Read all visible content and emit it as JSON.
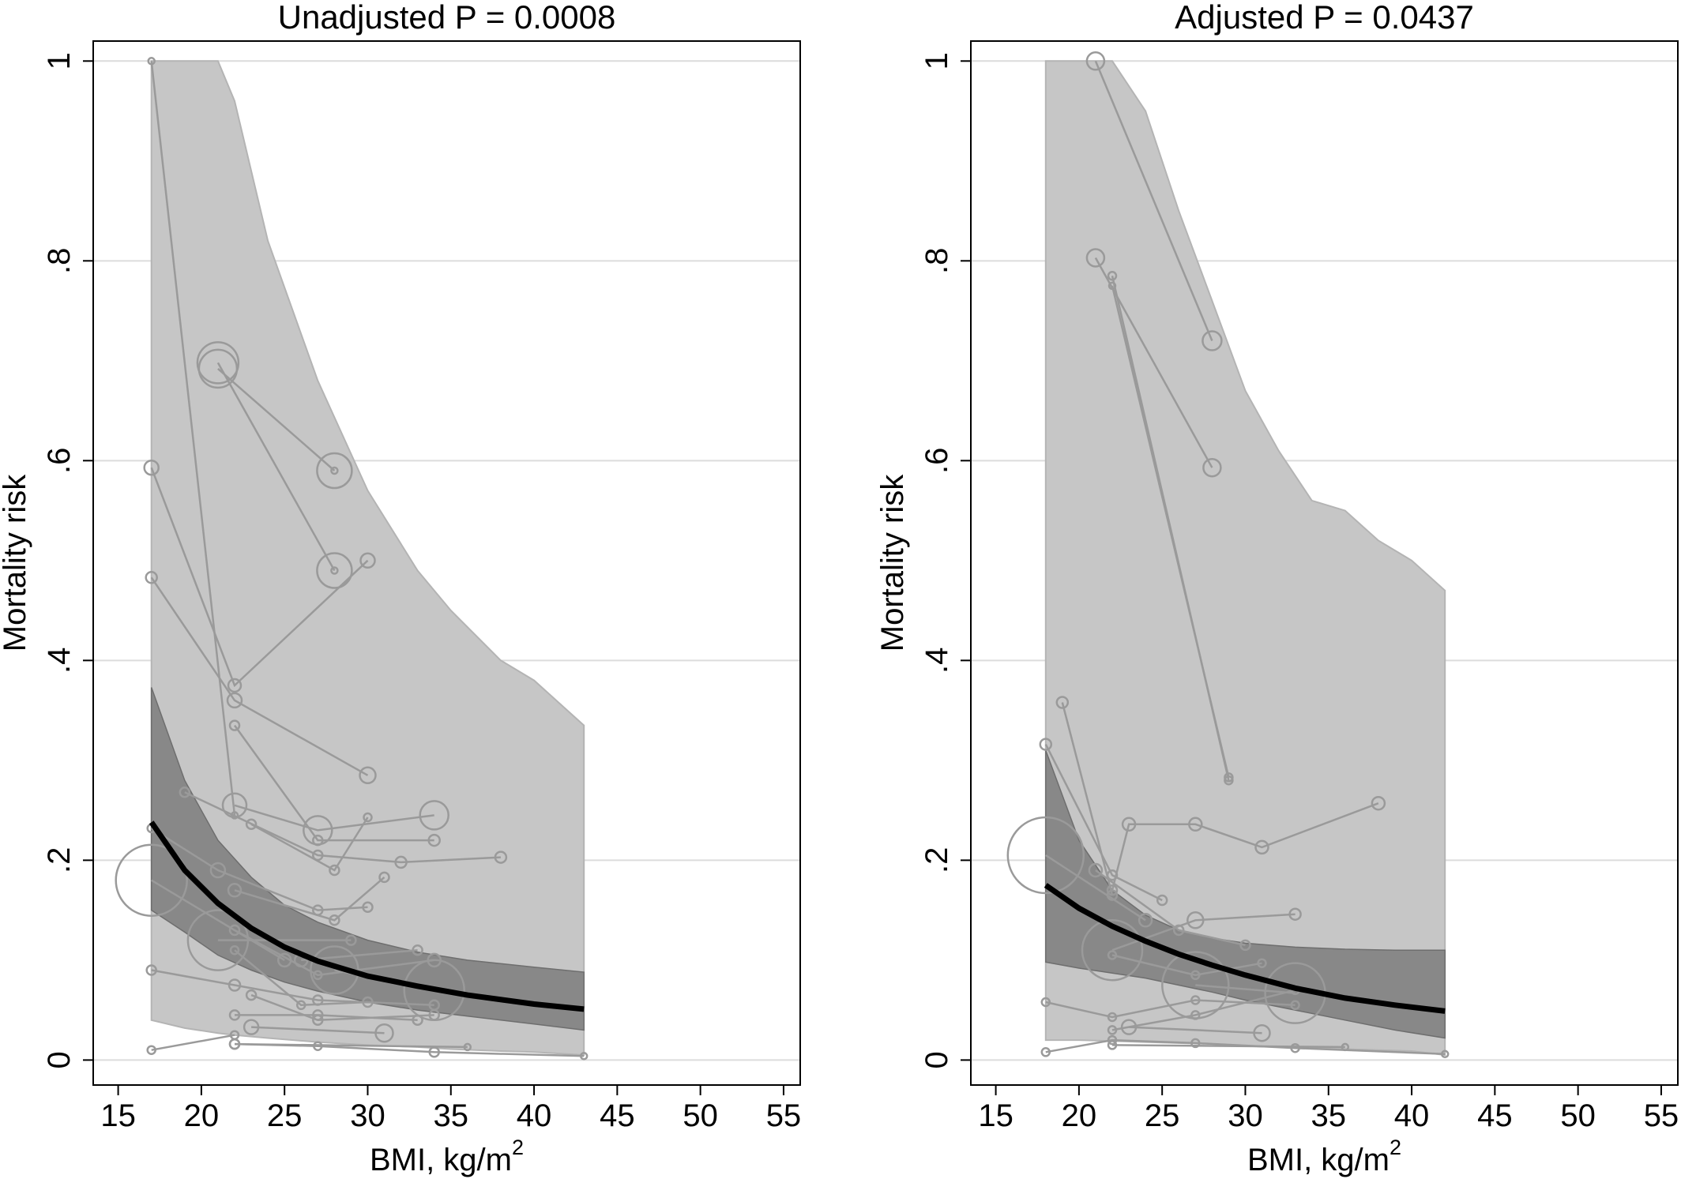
{
  "chart_data": [
    {
      "type": "line",
      "title": "Unadjusted P = 0.0008",
      "xlabel": "BMI, kg/m",
      "xlabel_superscript": "2",
      "ylabel": "Mortality risk",
      "xlim": [
        13.5,
        56
      ],
      "ylim": [
        -0.025,
        1.02
      ],
      "x_ticks": [
        15,
        20,
        25,
        30,
        35,
        40,
        45,
        50,
        55
      ],
      "x_tick_labels": [
        "15",
        "20",
        "25",
        "30",
        "35",
        "40",
        "45",
        "50",
        "55"
      ],
      "y_ticks": [
        0,
        0.2,
        0.4,
        0.6,
        0.8,
        1
      ],
      "y_tick_labels": [
        "0",
        ".2",
        ".4",
        ".6",
        ".8",
        "1"
      ],
      "grid": "horizontal",
      "colors": {
        "prediction_band": "#c6c6c6",
        "confidence_band": "#888888",
        "fit": "#000000",
        "study_points": "#9a9a9a"
      },
      "prediction_band": {
        "x": [
          17,
          19,
          21,
          22,
          24,
          27,
          30,
          33,
          35,
          38,
          40,
          43
        ],
        "upper": [
          1,
          1,
          1,
          0.96,
          0.82,
          0.68,
          0.57,
          0.49,
          0.45,
          0.4,
          0.38,
          0.335
        ],
        "lower": [
          0.04,
          0.032,
          0.027,
          0.025,
          0.022,
          0.018,
          0.015,
          0.013,
          0.011,
          0.009,
          0.008,
          0.005
        ]
      },
      "confidence_band": {
        "x": [
          17,
          19,
          21,
          23,
          25,
          27,
          30,
          33,
          36,
          40,
          43
        ],
        "upper": [
          0.373,
          0.28,
          0.22,
          0.183,
          0.155,
          0.138,
          0.12,
          0.108,
          0.1,
          0.093,
          0.088
        ],
        "lower": [
          0.15,
          0.128,
          0.105,
          0.09,
          0.078,
          0.069,
          0.058,
          0.05,
          0.044,
          0.036,
          0.03
        ]
      },
      "fit": {
        "x": [
          17,
          19,
          21,
          23,
          25,
          27,
          30,
          33,
          36,
          40,
          43
        ],
        "y": [
          0.238,
          0.19,
          0.157,
          0.132,
          0.113,
          0.099,
          0.084,
          0.074,
          0.065,
          0.056,
          0.051
        ]
      },
      "studies": [
        {
          "points": [
            [
              17,
              1.0,
              4
            ],
            [
              22,
              0.245,
              4
            ]
          ]
        },
        {
          "points": [
            [
              21,
              0.698,
              26
            ],
            [
              28,
              0.49,
              4
            ]
          ]
        },
        {
          "points": [
            [
              21,
              0.692,
              24
            ],
            [
              28,
              0.59,
              4
            ]
          ]
        },
        {
          "points": [
            [
              28,
              0.59,
              22
            ]
          ]
        },
        {
          "points": [
            [
              17,
              0.593,
              9
            ],
            [
              22,
              0.375,
              8
            ],
            [
              30,
              0.5,
              9
            ]
          ]
        },
        {
          "points": [
            [
              17,
              0.483,
              7
            ],
            [
              22,
              0.36,
              9
            ],
            [
              30,
              0.285,
              10
            ]
          ]
        },
        {
          "points": [
            [
              28,
              0.49,
              22
            ]
          ]
        },
        {
          "points": [
            [
              22,
              0.335,
              6
            ],
            [
              27,
              0.22,
              6
            ],
            [
              34,
              0.22,
              7
            ]
          ]
        },
        {
          "points": [
            [
              22,
              0.255,
              15
            ],
            [
              27,
              0.23,
              18
            ],
            [
              34,
              0.245,
              18
            ]
          ]
        },
        {
          "points": [
            [
              19,
              0.268,
              6
            ],
            [
              27,
              0.205,
              6
            ],
            [
              32,
              0.198,
              7
            ],
            [
              38,
              0.203,
              7
            ]
          ]
        },
        {
          "points": [
            [
              23,
              0.236,
              6
            ],
            [
              28,
              0.19,
              6
            ],
            [
              30,
              0.243,
              5
            ]
          ]
        },
        {
          "points": [
            [
              17,
              0.232,
              5
            ],
            [
              21,
              0.19,
              9
            ],
            [
              27,
              0.15,
              6
            ],
            [
              30,
              0.153,
              6
            ]
          ]
        },
        {
          "points": [
            [
              17,
              0.18,
              45
            ],
            [
              25,
              0.1,
              8
            ]
          ]
        },
        {
          "points": [
            [
              21,
              0.12,
              38
            ],
            [
              29,
              0.12,
              6
            ]
          ]
        },
        {
          "points": [
            [
              22,
              0.17,
              8
            ],
            [
              28,
              0.14,
              6
            ],
            [
              31,
              0.183,
              6
            ]
          ]
        },
        {
          "points": [
            [
              26,
              0.1,
              8
            ],
            [
              33,
              0.11,
              6
            ]
          ]
        },
        {
          "points": [
            [
              22,
              0.13,
              6
            ],
            [
              27,
              0.085,
              5
            ],
            [
              34,
              0.1,
              8
            ]
          ]
        },
        {
          "points": [
            [
              28,
              0.09,
              30
            ],
            [
              34,
              0.07,
              38
            ]
          ]
        },
        {
          "points": [
            [
              17,
              0.09,
              6
            ],
            [
              22,
              0.075,
              7
            ],
            [
              27,
              0.06,
              6
            ],
            [
              34,
              0.055,
              6
            ]
          ]
        },
        {
          "points": [
            [
              22,
              0.11,
              5
            ],
            [
              26,
              0.055,
              5
            ],
            [
              30,
              0.058,
              6
            ]
          ]
        },
        {
          "points": [
            [
              23,
              0.065,
              6
            ],
            [
              27,
              0.04,
              6
            ],
            [
              34,
              0.045,
              6
            ]
          ]
        },
        {
          "points": [
            [
              22,
              0.045,
              6
            ],
            [
              27,
              0.045,
              6
            ],
            [
              33,
              0.04,
              6
            ]
          ]
        },
        {
          "points": [
            [
              23,
              0.033,
              9
            ],
            [
              31,
              0.027,
              11
            ]
          ]
        },
        {
          "points": [
            [
              17,
              0.01,
              5
            ],
            [
              22,
              0.025,
              5
            ]
          ]
        },
        {
          "points": [
            [
              22,
              0.016,
              6
            ],
            [
              27,
              0.014,
              5
            ],
            [
              34,
              0.008,
              6
            ],
            [
              43,
              0.004,
              4
            ]
          ]
        },
        {
          "points": [
            [
              22,
              0.016,
              6
            ],
            [
              36,
              0.013,
              4
            ]
          ]
        }
      ]
    },
    {
      "type": "line",
      "title": "Adjusted P = 0.0437",
      "xlabel": "BMI, kg/m",
      "xlabel_superscript": "2",
      "ylabel": "Mortality risk",
      "xlim": [
        13.5,
        56
      ],
      "ylim": [
        -0.025,
        1.02
      ],
      "x_ticks": [
        15,
        20,
        25,
        30,
        35,
        40,
        45,
        50,
        55
      ],
      "x_tick_labels": [
        "15",
        "20",
        "25",
        "30",
        "35",
        "40",
        "45",
        "50",
        "55"
      ],
      "y_ticks": [
        0,
        0.2,
        0.4,
        0.6,
        0.8,
        1
      ],
      "y_tick_labels": [
        "0",
        ".2",
        ".4",
        ".6",
        ".8",
        "1"
      ],
      "grid": "horizontal",
      "colors": {
        "prediction_band": "#c6c6c6",
        "confidence_band": "#888888",
        "fit": "#000000",
        "study_points": "#9a9a9a"
      },
      "prediction_band": {
        "x": [
          18,
          20,
          22,
          24,
          26,
          28,
          30,
          32,
          34,
          36,
          38,
          40,
          42
        ],
        "upper": [
          1,
          1,
          1,
          0.95,
          0.85,
          0.76,
          0.67,
          0.61,
          0.56,
          0.55,
          0.52,
          0.5,
          0.47
        ],
        "lower": [
          0.02,
          0.02,
          0.019,
          0.018,
          0.017,
          0.016,
          0.014,
          0.013,
          0.012,
          0.011,
          0.01,
          0.009,
          0.005
        ]
      },
      "confidence_band": {
        "x": [
          18,
          20,
          22,
          24,
          26,
          28,
          30,
          33,
          36,
          39,
          42
        ],
        "upper": [
          0.31,
          0.22,
          0.17,
          0.145,
          0.13,
          0.122,
          0.117,
          0.113,
          0.111,
          0.11,
          0.11
        ],
        "lower": [
          0.098,
          0.092,
          0.087,
          0.082,
          0.075,
          0.068,
          0.06,
          0.05,
          0.04,
          0.03,
          0.022
        ]
      },
      "fit": {
        "x": [
          18,
          20,
          22,
          24,
          26,
          28,
          30,
          33,
          36,
          39,
          42
        ],
        "y": [
          0.175,
          0.152,
          0.134,
          0.119,
          0.106,
          0.095,
          0.085,
          0.072,
          0.062,
          0.055,
          0.049
        ]
      },
      "studies": [
        {
          "points": [
            [
              21,
              1.0,
              11
            ],
            [
              28,
              0.72,
              12
            ]
          ]
        },
        {
          "points": [
            [
              21,
              0.803,
              11
            ],
            [
              28,
              0.593,
              11
            ]
          ]
        },
        {
          "points": [
            [
              22,
              0.785,
              5
            ],
            [
              29,
              0.28,
              5
            ]
          ]
        },
        {
          "points": [
            [
              22,
              0.775,
              4
            ],
            [
              29,
              0.283,
              5
            ]
          ]
        },
        {
          "points": [
            [
              18,
              0.316,
              7
            ],
            [
              22,
              0.185,
              6
            ],
            [
              25,
              0.16,
              6
            ]
          ]
        },
        {
          "points": [
            [
              19,
              0.358,
              7
            ],
            [
              22,
              0.165,
              6
            ]
          ]
        },
        {
          "points": [
            [
              22,
              0.17,
              6
            ],
            [
              23,
              0.236,
              8
            ],
            [
              27,
              0.236,
              8
            ],
            [
              31,
              0.213,
              8
            ],
            [
              38,
              0.257,
              8
            ]
          ]
        },
        {
          "points": [
            [
              18,
              0.205,
              48
            ],
            [
              24,
              0.14,
              8
            ]
          ]
        },
        {
          "points": [
            [
              21,
              0.19,
              8
            ],
            [
              26,
              0.13,
              6
            ],
            [
              30,
              0.115,
              6
            ]
          ]
        },
        {
          "points": [
            [
              22,
              0.11,
              38
            ],
            [
              27,
              0.14,
              10
            ],
            [
              33,
              0.146,
              7
            ]
          ]
        },
        {
          "points": [
            [
              22,
              0.105,
              5
            ],
            [
              27,
              0.085,
              5
            ],
            [
              31,
              0.097,
              5
            ]
          ]
        },
        {
          "points": [
            [
              27,
              0.075,
              42
            ],
            [
              33,
              0.067,
              38
            ]
          ]
        },
        {
          "points": [
            [
              18,
              0.058,
              5
            ],
            [
              22,
              0.043,
              5
            ],
            [
              27,
              0.06,
              5
            ],
            [
              33,
              0.055,
              5
            ]
          ]
        },
        {
          "points": [
            [
              22,
              0.03,
              5
            ],
            [
              27,
              0.045,
              5
            ],
            [
              33,
              0.07,
              5
            ]
          ]
        },
        {
          "points": [
            [
              23,
              0.033,
              9
            ],
            [
              31,
              0.027,
              10
            ]
          ]
        },
        {
          "points": [
            [
              18,
              0.008,
              5
            ],
            [
              22,
              0.02,
              5
            ],
            [
              27,
              0.017,
              5
            ],
            [
              33,
              0.012,
              5
            ],
            [
              42,
              0.006,
              4
            ]
          ]
        },
        {
          "points": [
            [
              22,
              0.015,
              5
            ],
            [
              36,
              0.013,
              4
            ]
          ]
        }
      ]
    }
  ]
}
